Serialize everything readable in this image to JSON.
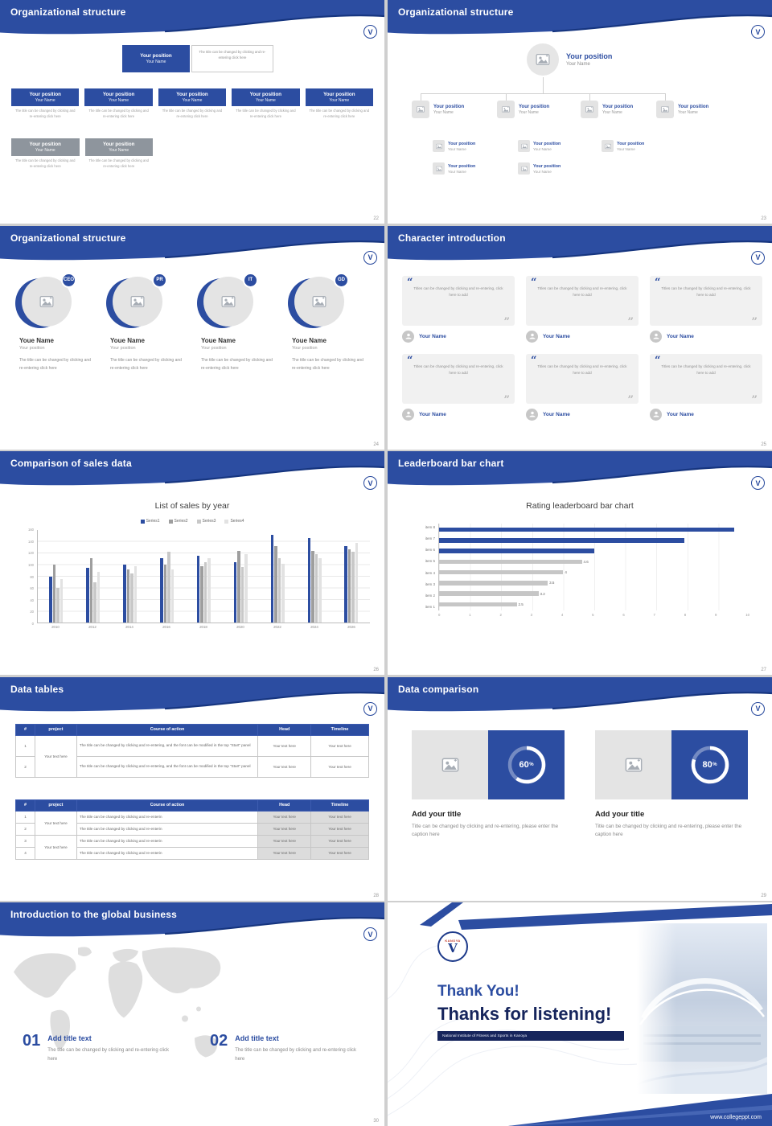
{
  "theme": {
    "accent": "#2c4da1",
    "accent_dark": "#16357f",
    "gray_box": "#8e959d"
  },
  "common": {
    "logo": "V"
  },
  "slide22": {
    "title": "Organizational structure",
    "page": "22",
    "top_unit": {
      "position": "Your position",
      "name": "Your Name",
      "note": "The title can be changed by clicking and re-entering click here"
    },
    "row1": [
      {
        "position": "Your position",
        "name": "Your Name",
        "note": "The title can be changed by clicking and re-entering click here"
      },
      {
        "position": "Your position",
        "name": "Your Name",
        "note": "The title can be changed by clicking and re-entering click here"
      },
      {
        "position": "Your position",
        "name": "Your Name",
        "note": "The title can be changed by clicking and re-entering click here"
      },
      {
        "position": "Your position",
        "name": "Your Name",
        "note": "The title can be changed by clicking and re-entering click here"
      },
      {
        "position": "Your position",
        "name": "Your Name",
        "note": "The title can be changed by clicking and re-entering click here"
      }
    ],
    "row2": [
      {
        "position": "Your position",
        "name": "Your Name",
        "note": "The title can be changed by clicking and re-entering click here"
      },
      {
        "position": "Your position",
        "name": "Your Name",
        "note": "The title can be changed by clicking and re-entering click here"
      }
    ]
  },
  "slide23": {
    "title": "Organizational structure",
    "page": "23",
    "root": {
      "position": "Your position",
      "name": "Your Name"
    },
    "level2": [
      {
        "position": "Your position",
        "name": "Your Name"
      },
      {
        "position": "Your position",
        "name": "Your Name"
      },
      {
        "position": "Your position",
        "name": "Your Name"
      },
      {
        "position": "Your position",
        "name": "Your Name"
      }
    ],
    "level3": [
      {
        "position": "Your position",
        "name": "Your Name"
      },
      {
        "position": "Your position",
        "name": "Your Name"
      },
      {
        "position": "Your position",
        "name": "Your Name"
      },
      {
        "position": "Your position",
        "name": "Your Name"
      },
      {
        "position": "Your position",
        "name": "Your Name"
      }
    ]
  },
  "slide24": {
    "title": "Organizational structure",
    "page": "24",
    "members": [
      {
        "badge": "CEO",
        "name": "Youe Name",
        "position": "Your position",
        "note": "The title can be changed by clicking and re-entering click here"
      },
      {
        "badge": "PR",
        "name": "Youe Name",
        "position": "Your position",
        "note": "The title can be changed by clicking and re-entering click here"
      },
      {
        "badge": "IT",
        "name": "Youe Name",
        "position": "Your position",
        "note": "The title can be changed by clicking and re-entering click here"
      },
      {
        "badge": "GD",
        "name": "Youe Name",
        "position": "Your position",
        "note": "The title can be changed by clicking and re-entering click here"
      }
    ]
  },
  "slide25": {
    "title": "Character introduction",
    "page": "25",
    "cards": [
      {
        "quote": "Titles can be changed by clicking and re-entering, click here to add",
        "name": "Your Name"
      },
      {
        "quote": "Titles can be changed by clicking and re-entering, click here to add",
        "name": "Your Name"
      },
      {
        "quote": "Titles can be changed by clicking and re-entering, click here to add",
        "name": "Your Name"
      },
      {
        "quote": "Titles can be changed by clicking and re-entering, click here to add",
        "name": "Your Name"
      },
      {
        "quote": "Titles can be changed by clicking and re-entering, click here to add",
        "name": "Your Name"
      },
      {
        "quote": "Titles can be changed by clicking and re-entering, click here to add",
        "name": "Your Name"
      }
    ]
  },
  "slide26": {
    "title": "Comparison of sales data",
    "page": "26",
    "chart_data": {
      "type": "bar",
      "title": "List of sales by year",
      "categories": [
        "2010",
        "2012",
        "2014",
        "2016",
        "2018",
        "2020",
        "2022",
        "2024",
        "2026"
      ],
      "series": [
        {
          "name": "Series1",
          "color": "#2c4da1",
          "values": [
            80,
            95,
            100,
            112,
            116,
            104,
            152,
            146,
            132
          ]
        },
        {
          "name": "Series2",
          "color": "#9e9e9e",
          "values": [
            100,
            112,
            92,
            100,
            98,
            124,
            132,
            124,
            126
          ]
        },
        {
          "name": "Series3",
          "color": "#c8c8c8",
          "values": [
            60,
            70,
            85,
            122,
            104,
            96,
            112,
            118,
            122
          ]
        },
        {
          "name": "Series4",
          "color": "#e2e2e2",
          "values": [
            75,
            88,
            98,
            92,
            112,
            118,
            102,
            112,
            138
          ]
        }
      ],
      "ylim": [
        0,
        160
      ],
      "yticks": [
        0,
        20,
        40,
        60,
        80,
        100,
        120,
        140,
        160
      ],
      "legend_position": "top",
      "grid": true
    }
  },
  "slide27": {
    "title": "Leaderboard bar chart",
    "page": "27",
    "chart_data": {
      "type": "bar-horizontal",
      "title": "Rating leaderboard bar chart",
      "categories": [
        "item 8",
        "item 7",
        "item 6",
        "item 5",
        "item 4",
        "item 3",
        "item 2",
        "item 1"
      ],
      "values": [
        9.5,
        7.9,
        5.0,
        4.6,
        4,
        3.5,
        3.2,
        2.5
      ],
      "colors": [
        "#2c4da1",
        "#2c4da1",
        "#2c4da1",
        "#c6c6c6",
        "#c6c6c6",
        "#c6c6c6",
        "#c6c6c6",
        "#c6c6c6"
      ],
      "labels": [
        "",
        "",
        "",
        "4.6",
        "4",
        "3.5",
        "3.2",
        "2.5"
      ],
      "xlim": [
        0,
        10
      ],
      "xticks": [
        0,
        1,
        2,
        3,
        4,
        5,
        6,
        7,
        8,
        9,
        10
      ],
      "grid": true
    }
  },
  "slide28": {
    "title": "Data tables",
    "page": "28",
    "tableA": {
      "headers": [
        "#",
        "project",
        "Course of action",
        "Head",
        "Timeline"
      ],
      "project": "Your text here",
      "cell": "Your text here",
      "long_text": "The title can be changed by clicking and re-entering, and the font can be modified in the top \"Start\" panel",
      "rows": [
        {
          "num": "1"
        },
        {
          "num": "2"
        }
      ]
    },
    "tableB": {
      "headers": [
        "#",
        "project",
        "Course of action",
        "Head",
        "Timeline"
      ],
      "project": "Your text here",
      "cell": "Your text here",
      "short_text": "The title can be changed by clicking and re-enterin",
      "rows": [
        {
          "num": "1"
        },
        {
          "num": "2"
        },
        {
          "num": "3"
        },
        {
          "num": "4"
        }
      ]
    }
  },
  "slide29": {
    "title": "Data comparison",
    "page": "29",
    "cards": [
      {
        "percent": 60,
        "title": "Add your title",
        "caption": "Title can be changed by clicking and re-entering, please enter the caption here"
      },
      {
        "percent": 80,
        "title": "Add your title",
        "caption": "Title can be changed by clicking and re-entering, please enter the caption here"
      }
    ]
  },
  "slide30": {
    "title": "Introduction to the global business",
    "page": "30",
    "items": [
      {
        "num": "01",
        "title": "Add title text",
        "caption": "The title can be changed by clicking and re-entering click here"
      },
      {
        "num": "02",
        "title": "Add title text",
        "caption": "The title can be changed by clicking and re-entering click here"
      }
    ]
  },
  "slide31": {
    "logo_text": "KANOYA",
    "thank_you": "Thank You!",
    "subtitle": "Thanks for listening!",
    "institute": "National Institute of Fitness and Sports in Kanoya",
    "website": "www.collegeppt.com"
  }
}
